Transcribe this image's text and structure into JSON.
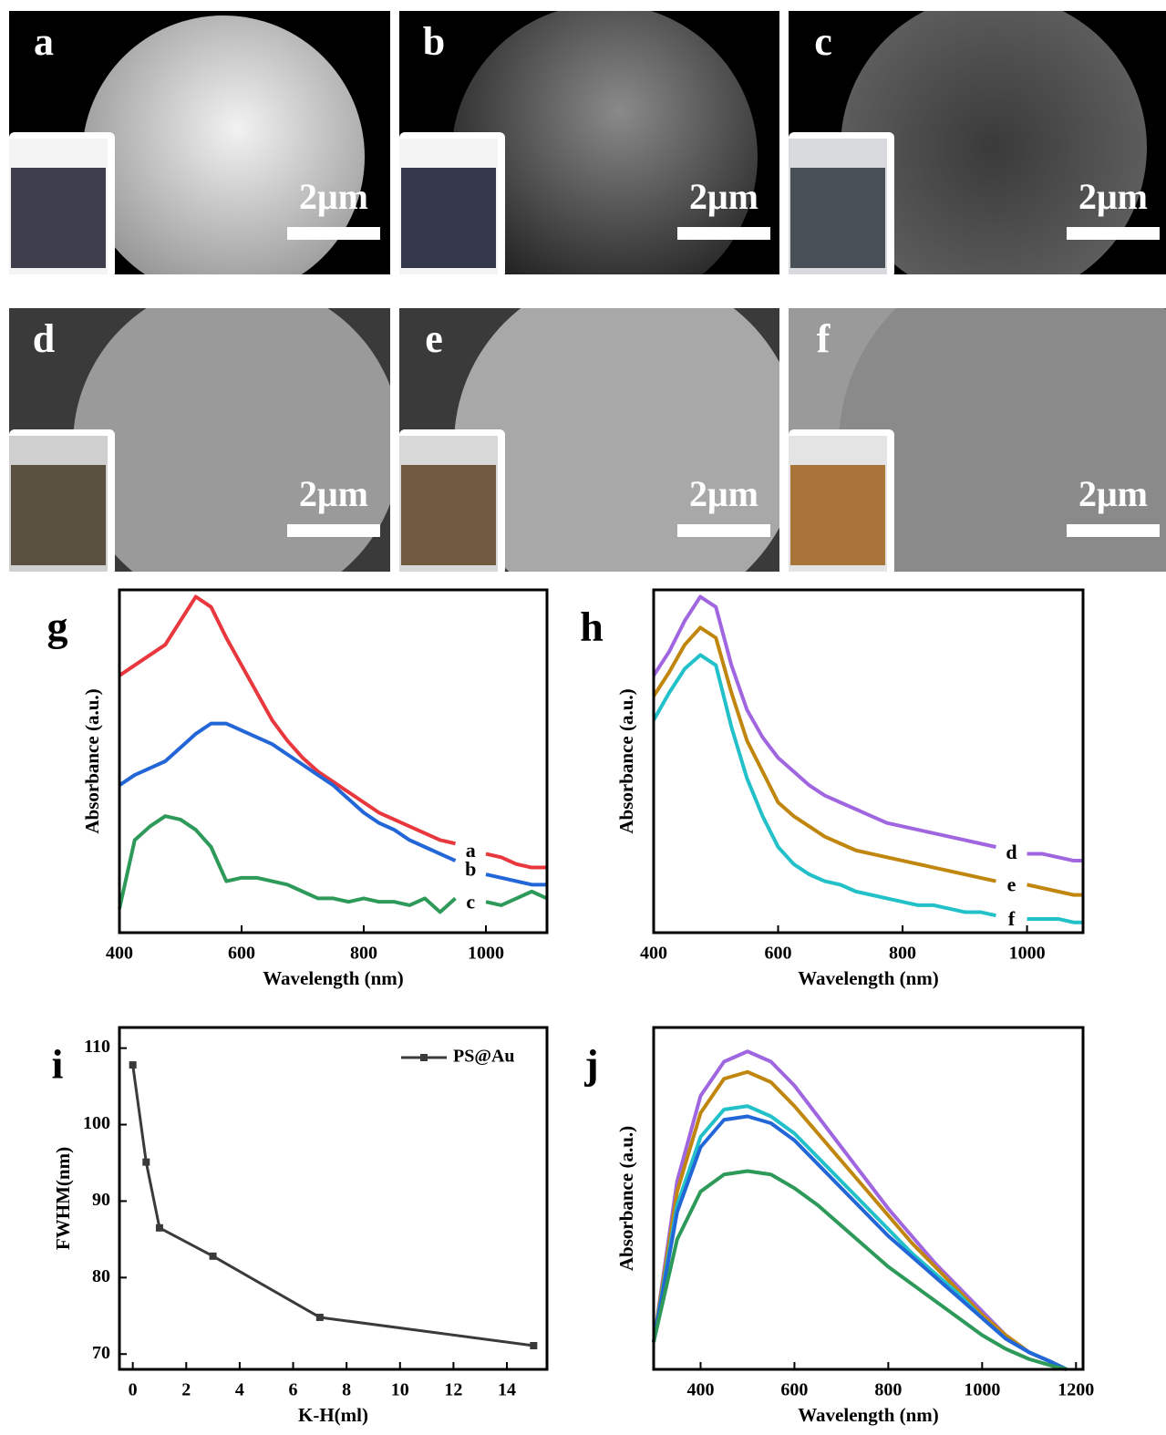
{
  "image_panels": [
    {
      "label": "a",
      "scale_bar": "2μm"
    },
    {
      "label": "b",
      "scale_bar": "2μm"
    },
    {
      "label": "c",
      "scale_bar": "2μm"
    },
    {
      "label": "d",
      "scale_bar": "2μm"
    },
    {
      "label": "e",
      "scale_bar": "2μm"
    },
    {
      "label": "f",
      "scale_bar": "2μm"
    }
  ],
  "chart_data": [
    {
      "type": "line",
      "label": "g",
      "x_label": "Wavelength (nm)",
      "y_label": "Absorbance (a.u.)",
      "xlim": [
        400,
        1100
      ],
      "xticks": [
        400,
        600,
        800,
        1000
      ],
      "ylim": [
        0,
        1
      ],
      "x": [
        400,
        425,
        450,
        475,
        500,
        525,
        550,
        575,
        600,
        625,
        650,
        675,
        700,
        725,
        750,
        775,
        800,
        825,
        850,
        875,
        900,
        925,
        950,
        975,
        1000,
        1025,
        1050,
        1075,
        1100
      ],
      "series": [
        {
          "name": "a",
          "color": "#e8383d",
          "values": [
            0.75,
            0.78,
            0.81,
            0.84,
            0.91,
            0.98,
            0.95,
            0.86,
            0.78,
            0.7,
            0.62,
            0.56,
            0.51,
            0.47,
            0.44,
            0.41,
            0.38,
            0.35,
            0.33,
            0.31,
            0.29,
            0.27,
            0.26,
            null,
            0.23,
            0.22,
            0.2,
            0.19,
            0.19
          ]
        },
        {
          "name": "b",
          "color": "#2266d8",
          "values": [
            0.43,
            0.46,
            0.48,
            0.5,
            0.54,
            0.58,
            0.61,
            0.61,
            0.59,
            0.57,
            0.55,
            0.52,
            0.49,
            0.46,
            0.43,
            0.39,
            0.35,
            0.32,
            0.3,
            0.27,
            0.25,
            0.23,
            0.21,
            null,
            0.17,
            0.16,
            0.15,
            0.14,
            0.14
          ]
        },
        {
          "name": "c",
          "color": "#2e9a5a",
          "values": [
            0.07,
            0.27,
            0.31,
            0.34,
            0.33,
            0.3,
            0.25,
            0.15,
            0.16,
            0.16,
            0.15,
            0.14,
            0.12,
            0.1,
            0.1,
            0.09,
            0.1,
            0.09,
            0.09,
            0.08,
            0.1,
            0.06,
            0.1,
            null,
            0.09,
            0.08,
            0.1,
            0.12,
            0.1
          ]
        }
      ]
    },
    {
      "type": "line",
      "label": "h",
      "x_label": "Wavelength (nm)",
      "y_label": "Absorbance (a.u.)",
      "xlim": [
        400,
        1090
      ],
      "xticks": [
        400,
        600,
        800,
        1000
      ],
      "ylim": [
        0,
        1
      ],
      "x": [
        400,
        425,
        450,
        475,
        500,
        525,
        550,
        575,
        600,
        625,
        650,
        675,
        700,
        725,
        750,
        775,
        800,
        825,
        850,
        875,
        900,
        925,
        950,
        975,
        1000,
        1025,
        1050,
        1075,
        1090
      ],
      "series": [
        {
          "name": "d",
          "color": "#a066e0",
          "values": [
            0.75,
            0.82,
            0.91,
            0.98,
            0.95,
            0.78,
            0.65,
            0.57,
            0.51,
            0.47,
            0.43,
            0.4,
            0.38,
            0.36,
            0.34,
            0.32,
            0.31,
            0.3,
            0.29,
            0.28,
            0.27,
            0.26,
            0.25,
            null,
            0.23,
            0.23,
            0.22,
            0.21,
            0.21
          ]
        },
        {
          "name": "e",
          "color": "#c0860e",
          "values": [
            0.69,
            0.76,
            0.84,
            0.89,
            0.86,
            0.7,
            0.56,
            0.47,
            0.38,
            0.34,
            0.31,
            0.28,
            0.26,
            0.24,
            0.23,
            0.22,
            0.21,
            0.2,
            0.19,
            0.18,
            0.17,
            0.16,
            0.15,
            null,
            0.14,
            0.13,
            0.12,
            0.11,
            0.11
          ]
        },
        {
          "name": "f",
          "color": "#22c0c8",
          "values": [
            0.62,
            0.7,
            0.77,
            0.81,
            0.78,
            0.6,
            0.45,
            0.34,
            0.25,
            0.2,
            0.17,
            0.15,
            0.14,
            0.12,
            0.11,
            0.1,
            0.09,
            0.08,
            0.08,
            0.07,
            0.06,
            0.06,
            0.05,
            null,
            0.04,
            0.04,
            0.04,
            0.03,
            0.03
          ]
        }
      ]
    },
    {
      "type": "line",
      "label": "i",
      "x_label": "K-H(ml)",
      "y_label": "FWHM(nm)",
      "xlim": [
        -0.5,
        15.5
      ],
      "xticks": [
        0,
        2,
        4,
        6,
        8,
        10,
        12,
        14
      ],
      "ylim": [
        68,
        112.7
      ],
      "yticks": [
        70,
        80,
        90,
        100,
        110
      ],
      "marker": "square",
      "legend": "upper right",
      "x": [
        0,
        0.5,
        1,
        3,
        7,
        15
      ],
      "series": [
        {
          "name": "PS@Au",
          "color": "#3a3a3a",
          "values": [
            107.8,
            95.1,
            86.5,
            82.8,
            74.8,
            71.1
          ]
        }
      ]
    },
    {
      "type": "line",
      "label": "j",
      "x_label": "Wavelength (nm)",
      "y_label": "Absorbance (a.u.)",
      "xlim": [
        300,
        1215
      ],
      "xticks": [
        400,
        600,
        800,
        1000,
        1200
      ],
      "ylim": [
        0,
        1
      ],
      "x": [
        300,
        350,
        400,
        450,
        500,
        550,
        600,
        650,
        700,
        750,
        800,
        850,
        900,
        950,
        1000,
        1050,
        1100,
        1150,
        1180
      ],
      "series": [
        {
          "color": "#a066e0",
          "values": [
            0.08,
            0.55,
            0.8,
            0.9,
            0.93,
            0.9,
            0.83,
            0.74,
            0.65,
            0.56,
            0.47,
            0.39,
            0.31,
            0.24,
            0.17,
            0.1,
            0.05,
            0.02,
            0
          ]
        },
        {
          "color": "#c0860e",
          "values": [
            0.08,
            0.52,
            0.75,
            0.85,
            0.87,
            0.84,
            0.77,
            0.69,
            0.61,
            0.53,
            0.45,
            0.37,
            0.3,
            0.23,
            0.16,
            0.1,
            0.05,
            0.02,
            0
          ]
        },
        {
          "color": "#22c0c8",
          "values": [
            0.08,
            0.48,
            0.68,
            0.76,
            0.77,
            0.74,
            0.69,
            0.62,
            0.55,
            0.48,
            0.41,
            0.34,
            0.28,
            0.22,
            0.15,
            0.09,
            0.05,
            0.02,
            0
          ]
        },
        {
          "color": "#2266d8",
          "values": [
            0.08,
            0.46,
            0.65,
            0.73,
            0.74,
            0.72,
            0.67,
            0.6,
            0.53,
            0.46,
            0.39,
            0.33,
            0.27,
            0.21,
            0.15,
            0.09,
            0.05,
            0.02,
            0
          ]
        },
        {
          "color": "#2e9a5a",
          "values": [
            0.08,
            0.38,
            0.52,
            0.57,
            0.58,
            0.57,
            0.53,
            0.48,
            0.42,
            0.36,
            0.3,
            0.25,
            0.2,
            0.15,
            0.1,
            0.06,
            0.03,
            0.01,
            0
          ]
        }
      ]
    }
  ]
}
